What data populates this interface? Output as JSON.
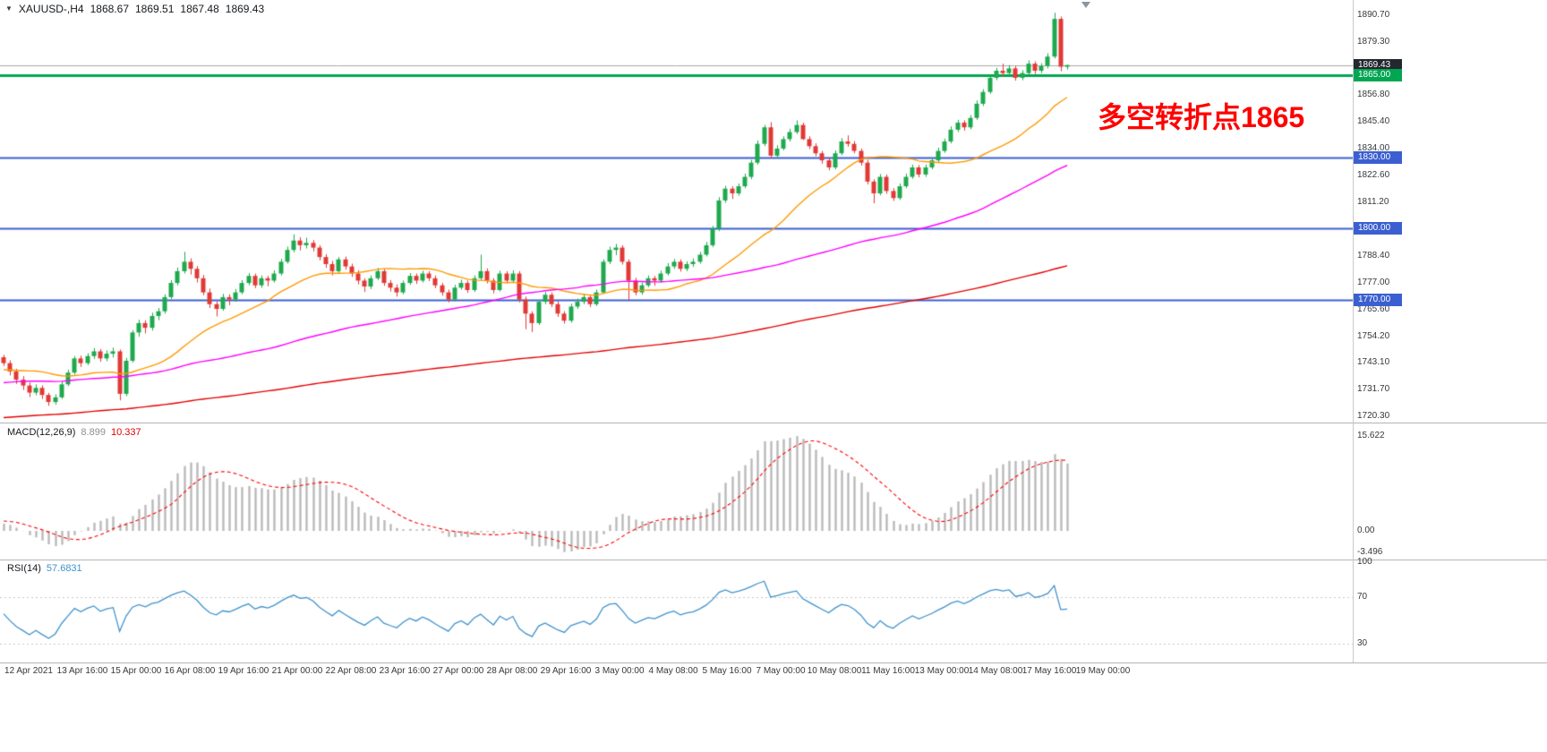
{
  "header": {
    "symbol_period": "XAUUSD-,H4",
    "open": "1868.67",
    "high": "1869.51",
    "low": "1867.48",
    "close": "1869.43"
  },
  "annotation": {
    "text": "多空转折点1865",
    "color": "#FF0000"
  },
  "price_axis": {
    "ticks": [
      "1890.70",
      "1879.30",
      "1856.80",
      "1845.40",
      "1834.00",
      "1822.60",
      "1811.20",
      "1788.40",
      "1777.00",
      "1765.60",
      "1754.20",
      "1743.10",
      "1731.70",
      "1720.30"
    ],
    "boxes": [
      {
        "label": "1869.43",
        "value": 1869.43,
        "bg": "#23272e",
        "type": "current-price"
      },
      {
        "label": "1865.00",
        "value": 1865.0,
        "bg": "#00a651",
        "type": "level"
      },
      {
        "label": "1830.00",
        "value": 1830.0,
        "bg": "#3b5fd0",
        "type": "level"
      },
      {
        "label": "1800.00",
        "value": 1800.0,
        "bg": "#3b5fd0",
        "type": "level"
      },
      {
        "label": "1770.00",
        "value": 1770.0,
        "bg": "#3b5fd0",
        "type": "level"
      }
    ]
  },
  "macd_panel": {
    "label": "MACD(12,26,9)",
    "value_main": "8.899",
    "value_signal": "10.337",
    "axis": [
      "15.622",
      "0.00",
      "-3.496"
    ]
  },
  "rsi_panel": {
    "label": "RSI(14)",
    "value": "57.6831",
    "axis": [
      "100",
      "70",
      "30"
    ]
  },
  "chart_data": {
    "type": "candlestick",
    "symbol": "XAUUSD",
    "timeframe": "H4",
    "title": "XAUUSD-,H4 1868.67 1869.51 1867.48 1869.43",
    "price_axis_range": [
      1720.3,
      1890.7
    ],
    "current_price": 1869.43,
    "x_tick_labels": [
      "12 Apr 2021",
      "13 Apr 16:00",
      "15 Apr 00:00",
      "16 Apr 08:00",
      "19 Apr 16:00",
      "21 Apr 00:00",
      "22 Apr 08:00",
      "23 Apr 16:00",
      "27 Apr 00:00",
      "28 Apr 08:00",
      "29 Apr 16:00",
      "3 May 00:00",
      "4 May 08:00",
      "5 May 16:00",
      "7 May 00:00",
      "10 May 08:00",
      "11 May 16:00",
      "13 May 00:00",
      "14 May 08:00",
      "17 May 16:00",
      "19 May 00:00"
    ],
    "levels": [
      {
        "value": 1865.0,
        "color": "#00a651",
        "width": 3
      },
      {
        "value": 1830.0,
        "color": "#3b5fd0",
        "width": 2
      },
      {
        "value": 1800.0,
        "color": "#3b5fd0",
        "width": 2
      },
      {
        "value": 1770.0,
        "color": "#3b5fd0",
        "width": 2
      }
    ],
    "colors": {
      "up": "#1fa94e",
      "down": "#e03a36",
      "current_line": "#a8a8a8",
      "macd_hist": "#b9b9b9",
      "macd_signal": "#ff0000",
      "rsi_line": "#3f92cc",
      "rsi_levels": "#c8c8c8"
    },
    "moving_averages": [
      {
        "period": 24,
        "color": "#ff9900"
      },
      {
        "period": 72,
        "color": "#ff00ff"
      },
      {
        "period": 200,
        "color": "#e60000"
      }
    ],
    "warmup": {
      "bars": 210,
      "start": 1694,
      "end": 1743,
      "wiggle": 5
    },
    "indicators": {
      "macd": {
        "fast": 12,
        "slow": 26,
        "signal_period": 9,
        "main": 8.899,
        "signal": 10.337,
        "axis_max": 15.622,
        "axis_min": -3.496
      },
      "rsi": {
        "period": 14,
        "value": 57.6831,
        "levels": [
          70,
          30
        ]
      }
    },
    "candles": [
      [
        1745.5,
        1746.5,
        1741.8,
        1743.0
      ],
      [
        1743.0,
        1744.2,
        1737.8,
        1739.5
      ],
      [
        1739.5,
        1740.6,
        1734.2,
        1736.0
      ],
      [
        1736.0,
        1737.5,
        1731.6,
        1733.5
      ],
      [
        1733.5,
        1734.8,
        1728.6,
        1730.5
      ],
      [
        1730.5,
        1734.0,
        1729.4,
        1732.5
      ],
      [
        1732.5,
        1733.6,
        1727.8,
        1729.5
      ],
      [
        1729.5,
        1730.4,
        1724.9,
        1726.5
      ],
      [
        1726.5,
        1729.8,
        1725.4,
        1728.5
      ],
      [
        1728.5,
        1735.2,
        1727.8,
        1734.0
      ],
      [
        1734.0,
        1740.2,
        1733.2,
        1739.0
      ],
      [
        1739.0,
        1746.0,
        1738.2,
        1745.0
      ],
      [
        1745.0,
        1746.2,
        1741.4,
        1743.0
      ],
      [
        1743.0,
        1747.2,
        1742.2,
        1746.0
      ],
      [
        1746.0,
        1749.4,
        1744.8,
        1748.0
      ],
      [
        1748.0,
        1749.0,
        1743.6,
        1745.0
      ],
      [
        1745.0,
        1748.4,
        1743.8,
        1747.0
      ],
      [
        1747.0,
        1749.6,
        1745.4,
        1748.0
      ],
      [
        1748.0,
        1748.8,
        1727.2,
        1730.0
      ],
      [
        1730.0,
        1745.2,
        1729.0,
        1744.0
      ],
      [
        1744.0,
        1757.0,
        1743.2,
        1756.0
      ],
      [
        1756.0,
        1761.4,
        1754.2,
        1760.0
      ],
      [
        1760.0,
        1761.2,
        1755.6,
        1758.0
      ],
      [
        1758.0,
        1764.4,
        1756.8,
        1763.0
      ],
      [
        1763.0,
        1766.4,
        1761.2,
        1765.0
      ],
      [
        1765.0,
        1772.2,
        1764.0,
        1771.0
      ],
      [
        1771.0,
        1778.2,
        1770.2,
        1777.0
      ],
      [
        1777.0,
        1783.6,
        1776.0,
        1782.0
      ],
      [
        1782.0,
        1790.2,
        1781.0,
        1786.0
      ],
      [
        1786.0,
        1787.4,
        1780.6,
        1783.0
      ],
      [
        1783.0,
        1784.2,
        1777.2,
        1779.0
      ],
      [
        1779.0,
        1780.4,
        1771.8,
        1773.0
      ],
      [
        1773.0,
        1774.6,
        1766.4,
        1768.0
      ],
      [
        1768.0,
        1769.2,
        1762.8,
        1766.0
      ],
      [
        1766.0,
        1772.4,
        1765.2,
        1771.0
      ],
      [
        1771.0,
        1772.2,
        1767.6,
        1770.0
      ],
      [
        1770.0,
        1774.4,
        1769.0,
        1773.0
      ],
      [
        1773.0,
        1778.2,
        1772.2,
        1777.0
      ],
      [
        1777.0,
        1781.2,
        1776.0,
        1780.0
      ],
      [
        1780.0,
        1781.0,
        1774.8,
        1776.0
      ],
      [
        1776.0,
        1780.2,
        1775.0,
        1779.0
      ],
      [
        1779.0,
        1780.0,
        1775.6,
        1778.0
      ],
      [
        1778.0,
        1782.4,
        1777.2,
        1781.0
      ],
      [
        1781.0,
        1787.2,
        1780.2,
        1786.0
      ],
      [
        1786.0,
        1792.4,
        1785.2,
        1791.0
      ],
      [
        1791.0,
        1797.6,
        1790.0,
        1795.0
      ],
      [
        1795.0,
        1796.4,
        1790.8,
        1793.0
      ],
      [
        1793.0,
        1796.2,
        1791.6,
        1794.0
      ],
      [
        1794.0,
        1795.2,
        1790.4,
        1792.0
      ],
      [
        1792.0,
        1793.0,
        1786.6,
        1788.0
      ],
      [
        1788.0,
        1789.2,
        1783.4,
        1785.0
      ],
      [
        1785.0,
        1786.4,
        1780.2,
        1782.0
      ],
      [
        1782.0,
        1788.0,
        1781.2,
        1787.0
      ],
      [
        1787.0,
        1788.2,
        1782.6,
        1784.0
      ],
      [
        1784.0,
        1785.2,
        1779.6,
        1781.0
      ],
      [
        1781.0,
        1782.4,
        1776.4,
        1778.0
      ],
      [
        1778.0,
        1779.0,
        1773.2,
        1775.5
      ],
      [
        1775.5,
        1780.2,
        1774.4,
        1779.0
      ],
      [
        1779.0,
        1783.4,
        1778.2,
        1782.0
      ],
      [
        1782.0,
        1783.0,
        1775.8,
        1777.0
      ],
      [
        1777.0,
        1778.2,
        1773.4,
        1775.0
      ],
      [
        1775.0,
        1776.4,
        1771.2,
        1773.0
      ],
      [
        1773.0,
        1778.0,
        1772.2,
        1777.0
      ],
      [
        1777.0,
        1781.2,
        1776.2,
        1780.0
      ],
      [
        1780.0,
        1781.0,
        1776.6,
        1778.0
      ],
      [
        1778.0,
        1782.2,
        1777.2,
        1781.0
      ],
      [
        1781.0,
        1782.0,
        1777.8,
        1779.0
      ],
      [
        1779.0,
        1780.2,
        1774.8,
        1776.0
      ],
      [
        1776.0,
        1777.0,
        1771.6,
        1773.0
      ],
      [
        1773.0,
        1774.2,
        1768.8,
        1770.0
      ],
      [
        1770.0,
        1776.2,
        1769.2,
        1775.0
      ],
      [
        1775.0,
        1778.4,
        1774.2,
        1777.0
      ],
      [
        1777.0,
        1778.0,
        1772.8,
        1774.0
      ],
      [
        1774.0,
        1780.2,
        1773.2,
        1779.0
      ],
      [
        1779.0,
        1789.0,
        1778.2,
        1782.0
      ],
      [
        1782.0,
        1783.2,
        1776.8,
        1778.0
      ],
      [
        1778.0,
        1779.0,
        1772.6,
        1774.0
      ],
      [
        1774.0,
        1782.2,
        1773.4,
        1781.0
      ],
      [
        1781.0,
        1782.0,
        1776.8,
        1778.0
      ],
      [
        1778.0,
        1782.4,
        1777.0,
        1781.0
      ],
      [
        1781.0,
        1782.0,
        1768.8,
        1770.0
      ],
      [
        1770.0,
        1771.2,
        1757.4,
        1764.0
      ],
      [
        1764.0,
        1765.0,
        1756.2,
        1760.0
      ],
      [
        1760.0,
        1769.8,
        1759.2,
        1769.0
      ],
      [
        1769.0,
        1773.2,
        1768.0,
        1772.0
      ],
      [
        1772.0,
        1773.0,
        1766.8,
        1768.0
      ],
      [
        1768.0,
        1769.2,
        1762.6,
        1764.0
      ],
      [
        1764.0,
        1765.0,
        1759.8,
        1761.0
      ],
      [
        1761.0,
        1768.2,
        1760.2,
        1767.0
      ],
      [
        1767.0,
        1770.4,
        1766.0,
        1769.0
      ],
      [
        1769.0,
        1772.2,
        1768.0,
        1771.0
      ],
      [
        1771.0,
        1772.0,
        1766.8,
        1768.0
      ],
      [
        1768.0,
        1774.2,
        1767.2,
        1773.0
      ],
      [
        1773.0,
        1787.0,
        1772.4,
        1786.0
      ],
      [
        1786.0,
        1792.4,
        1785.0,
        1791.0
      ],
      [
        1791.0,
        1793.6,
        1788.8,
        1792.0
      ],
      [
        1792.0,
        1793.0,
        1784.8,
        1786.0
      ],
      [
        1786.0,
        1787.0,
        1769.6,
        1778.0
      ],
      [
        1778.0,
        1779.2,
        1771.8,
        1773.0
      ],
      [
        1773.0,
        1777.2,
        1772.0,
        1776.0
      ],
      [
        1776.0,
        1780.2,
        1775.2,
        1779.0
      ],
      [
        1779.0,
        1780.0,
        1775.8,
        1778.0
      ],
      [
        1778.0,
        1782.2,
        1777.2,
        1781.0
      ],
      [
        1781.0,
        1785.4,
        1780.2,
        1784.0
      ],
      [
        1784.0,
        1787.2,
        1783.0,
        1786.0
      ],
      [
        1786.0,
        1787.0,
        1781.8,
        1783.0
      ],
      [
        1783.0,
        1786.2,
        1782.0,
        1785.0
      ],
      [
        1785.0,
        1787.4,
        1783.8,
        1786.0
      ],
      [
        1786.0,
        1790.2,
        1785.2,
        1789.0
      ],
      [
        1789.0,
        1794.4,
        1788.2,
        1793.0
      ],
      [
        1793.0,
        1801.2,
        1792.2,
        1800.0
      ],
      [
        1800.0,
        1813.4,
        1799.0,
        1812.0
      ],
      [
        1812.0,
        1818.2,
        1811.0,
        1817.0
      ],
      [
        1817.0,
        1818.0,
        1812.6,
        1815.0
      ],
      [
        1815.0,
        1819.2,
        1814.0,
        1818.0
      ],
      [
        1818.0,
        1823.4,
        1817.2,
        1822.0
      ],
      [
        1822.0,
        1829.2,
        1821.0,
        1828.0
      ],
      [
        1828.0,
        1837.4,
        1827.2,
        1836.0
      ],
      [
        1836.0,
        1844.0,
        1835.0,
        1843.0
      ],
      [
        1843.0,
        1845.2,
        1829.8,
        1831.0
      ],
      [
        1831.0,
        1835.4,
        1830.0,
        1834.0
      ],
      [
        1834.0,
        1839.2,
        1833.2,
        1838.0
      ],
      [
        1838.0,
        1842.4,
        1837.0,
        1841.0
      ],
      [
        1841.0,
        1846.0,
        1840.2,
        1844.0
      ],
      [
        1844.0,
        1845.0,
        1837.6,
        1838.0
      ],
      [
        1838.0,
        1839.2,
        1833.8,
        1835.0
      ],
      [
        1835.0,
        1836.2,
        1830.8,
        1832.0
      ],
      [
        1832.0,
        1833.0,
        1827.6,
        1829.0
      ],
      [
        1829.0,
        1830.2,
        1824.8,
        1826.0
      ],
      [
        1826.0,
        1833.2,
        1825.2,
        1832.0
      ],
      [
        1832.0,
        1838.4,
        1831.2,
        1837.0
      ],
      [
        1837.0,
        1839.6,
        1834.8,
        1836.0
      ],
      [
        1836.0,
        1837.2,
        1832.0,
        1833.0
      ],
      [
        1833.0,
        1834.0,
        1826.8,
        1828.0
      ],
      [
        1828.0,
        1829.2,
        1818.8,
        1820.0
      ],
      [
        1820.0,
        1821.0,
        1810.8,
        1815.0
      ],
      [
        1815.0,
        1823.2,
        1814.2,
        1822.0
      ],
      [
        1822.0,
        1823.0,
        1814.8,
        1816.0
      ],
      [
        1816.0,
        1817.2,
        1811.8,
        1813.0
      ],
      [
        1813.0,
        1819.2,
        1812.2,
        1818.0
      ],
      [
        1818.0,
        1823.4,
        1817.2,
        1822.0
      ],
      [
        1822.0,
        1827.2,
        1821.2,
        1826.0
      ],
      [
        1826.0,
        1827.0,
        1821.8,
        1823.0
      ],
      [
        1823.0,
        1827.2,
        1822.0,
        1826.0
      ],
      [
        1826.0,
        1830.2,
        1825.2,
        1829.0
      ],
      [
        1829.0,
        1834.4,
        1828.2,
        1833.0
      ],
      [
        1833.0,
        1838.2,
        1832.2,
        1837.0
      ],
      [
        1837.0,
        1843.4,
        1836.2,
        1842.0
      ],
      [
        1842.0,
        1846.2,
        1841.0,
        1845.0
      ],
      [
        1845.0,
        1846.0,
        1841.6,
        1843.0
      ],
      [
        1843.0,
        1848.2,
        1842.2,
        1847.0
      ],
      [
        1847.0,
        1854.4,
        1846.2,
        1853.0
      ],
      [
        1853.0,
        1859.2,
        1852.0,
        1858.0
      ],
      [
        1858.0,
        1865.4,
        1857.2,
        1864.0
      ],
      [
        1864.0,
        1868.2,
        1863.0,
        1867.0
      ],
      [
        1867.0,
        1870.0,
        1864.6,
        1866.0
      ],
      [
        1866.0,
        1869.4,
        1864.8,
        1868.0
      ],
      [
        1868.0,
        1869.0,
        1862.8,
        1864.0
      ],
      [
        1864.0,
        1867.2,
        1863.0,
        1866.0
      ],
      [
        1866.0,
        1871.4,
        1865.2,
        1870.0
      ],
      [
        1870.0,
        1871.0,
        1865.6,
        1867.0
      ],
      [
        1867.0,
        1870.2,
        1866.0,
        1869.0
      ],
      [
        1869.0,
        1874.4,
        1868.0,
        1873.0
      ],
      [
        1873.0,
        1891.6,
        1872.2,
        1889.0
      ],
      [
        1889.0,
        1890.0,
        1866.8,
        1868.7
      ],
      [
        1868.67,
        1869.51,
        1867.48,
        1869.43
      ]
    ]
  }
}
